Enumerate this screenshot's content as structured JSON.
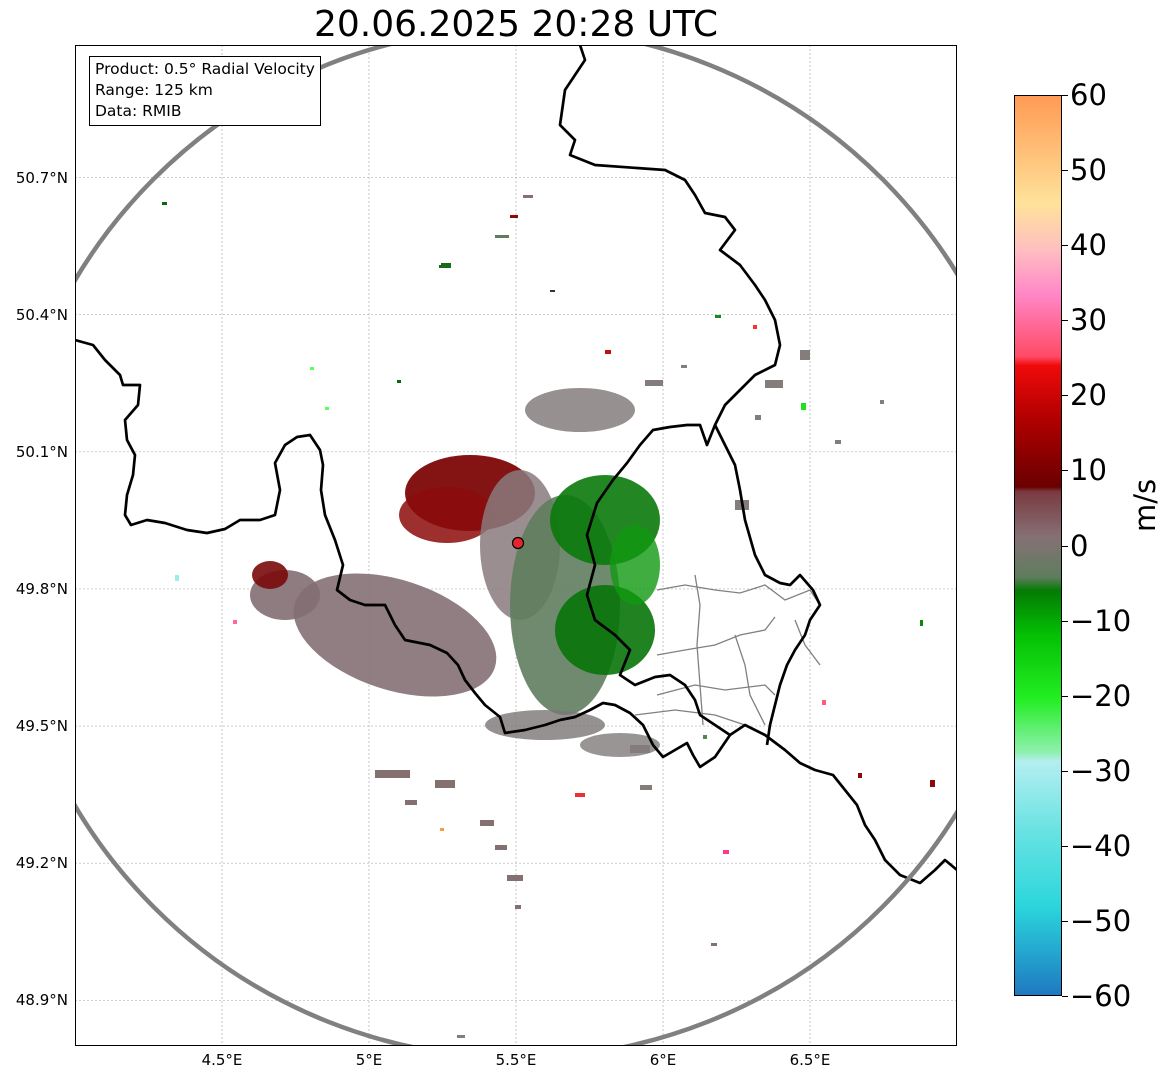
{
  "title": "20.06.2025 20:28 UTC",
  "info": {
    "product": "Product: 0.5° Radial Velocity",
    "range": "Range: 125 km",
    "data": "Data: RMIB"
  },
  "map": {
    "lon_range": [
      4.0,
      7.0
    ],
    "lat_range": [
      48.8,
      50.99
    ],
    "lat_ticks": [
      {
        "value": 50.7,
        "label": "50.7°N"
      },
      {
        "value": 50.4,
        "label": "50.4°N"
      },
      {
        "value": 50.1,
        "label": "50.1°N"
      },
      {
        "value": 49.8,
        "label": "49.8°N"
      },
      {
        "value": 49.5,
        "label": "49.5°N"
      },
      {
        "value": 49.2,
        "label": "49.2°N"
      },
      {
        "value": 48.9,
        "label": "48.9°N"
      }
    ],
    "lon_ticks": [
      {
        "value": 4.5,
        "label": "4.5°E"
      },
      {
        "value": 5.0,
        "label": "5°E"
      },
      {
        "value": 5.5,
        "label": "5.5°E"
      },
      {
        "value": 6.0,
        "label": "6°E"
      },
      {
        "value": 6.5,
        "label": "6.5°E"
      }
    ],
    "radar_site": {
      "lon": 5.505,
      "lat": 49.914,
      "color": "#e3262a"
    },
    "range_ring_color": "#808080",
    "border_color": "#000000",
    "region_border_color": "#808080"
  },
  "colorbar": {
    "unit": "m/s",
    "min": -60,
    "max": 60,
    "ticks": [
      "60",
      "50",
      "40",
      "30",
      "20",
      "10",
      "0",
      "−10",
      "−20",
      "−30",
      "−40",
      "−50",
      "−60"
    ]
  }
}
